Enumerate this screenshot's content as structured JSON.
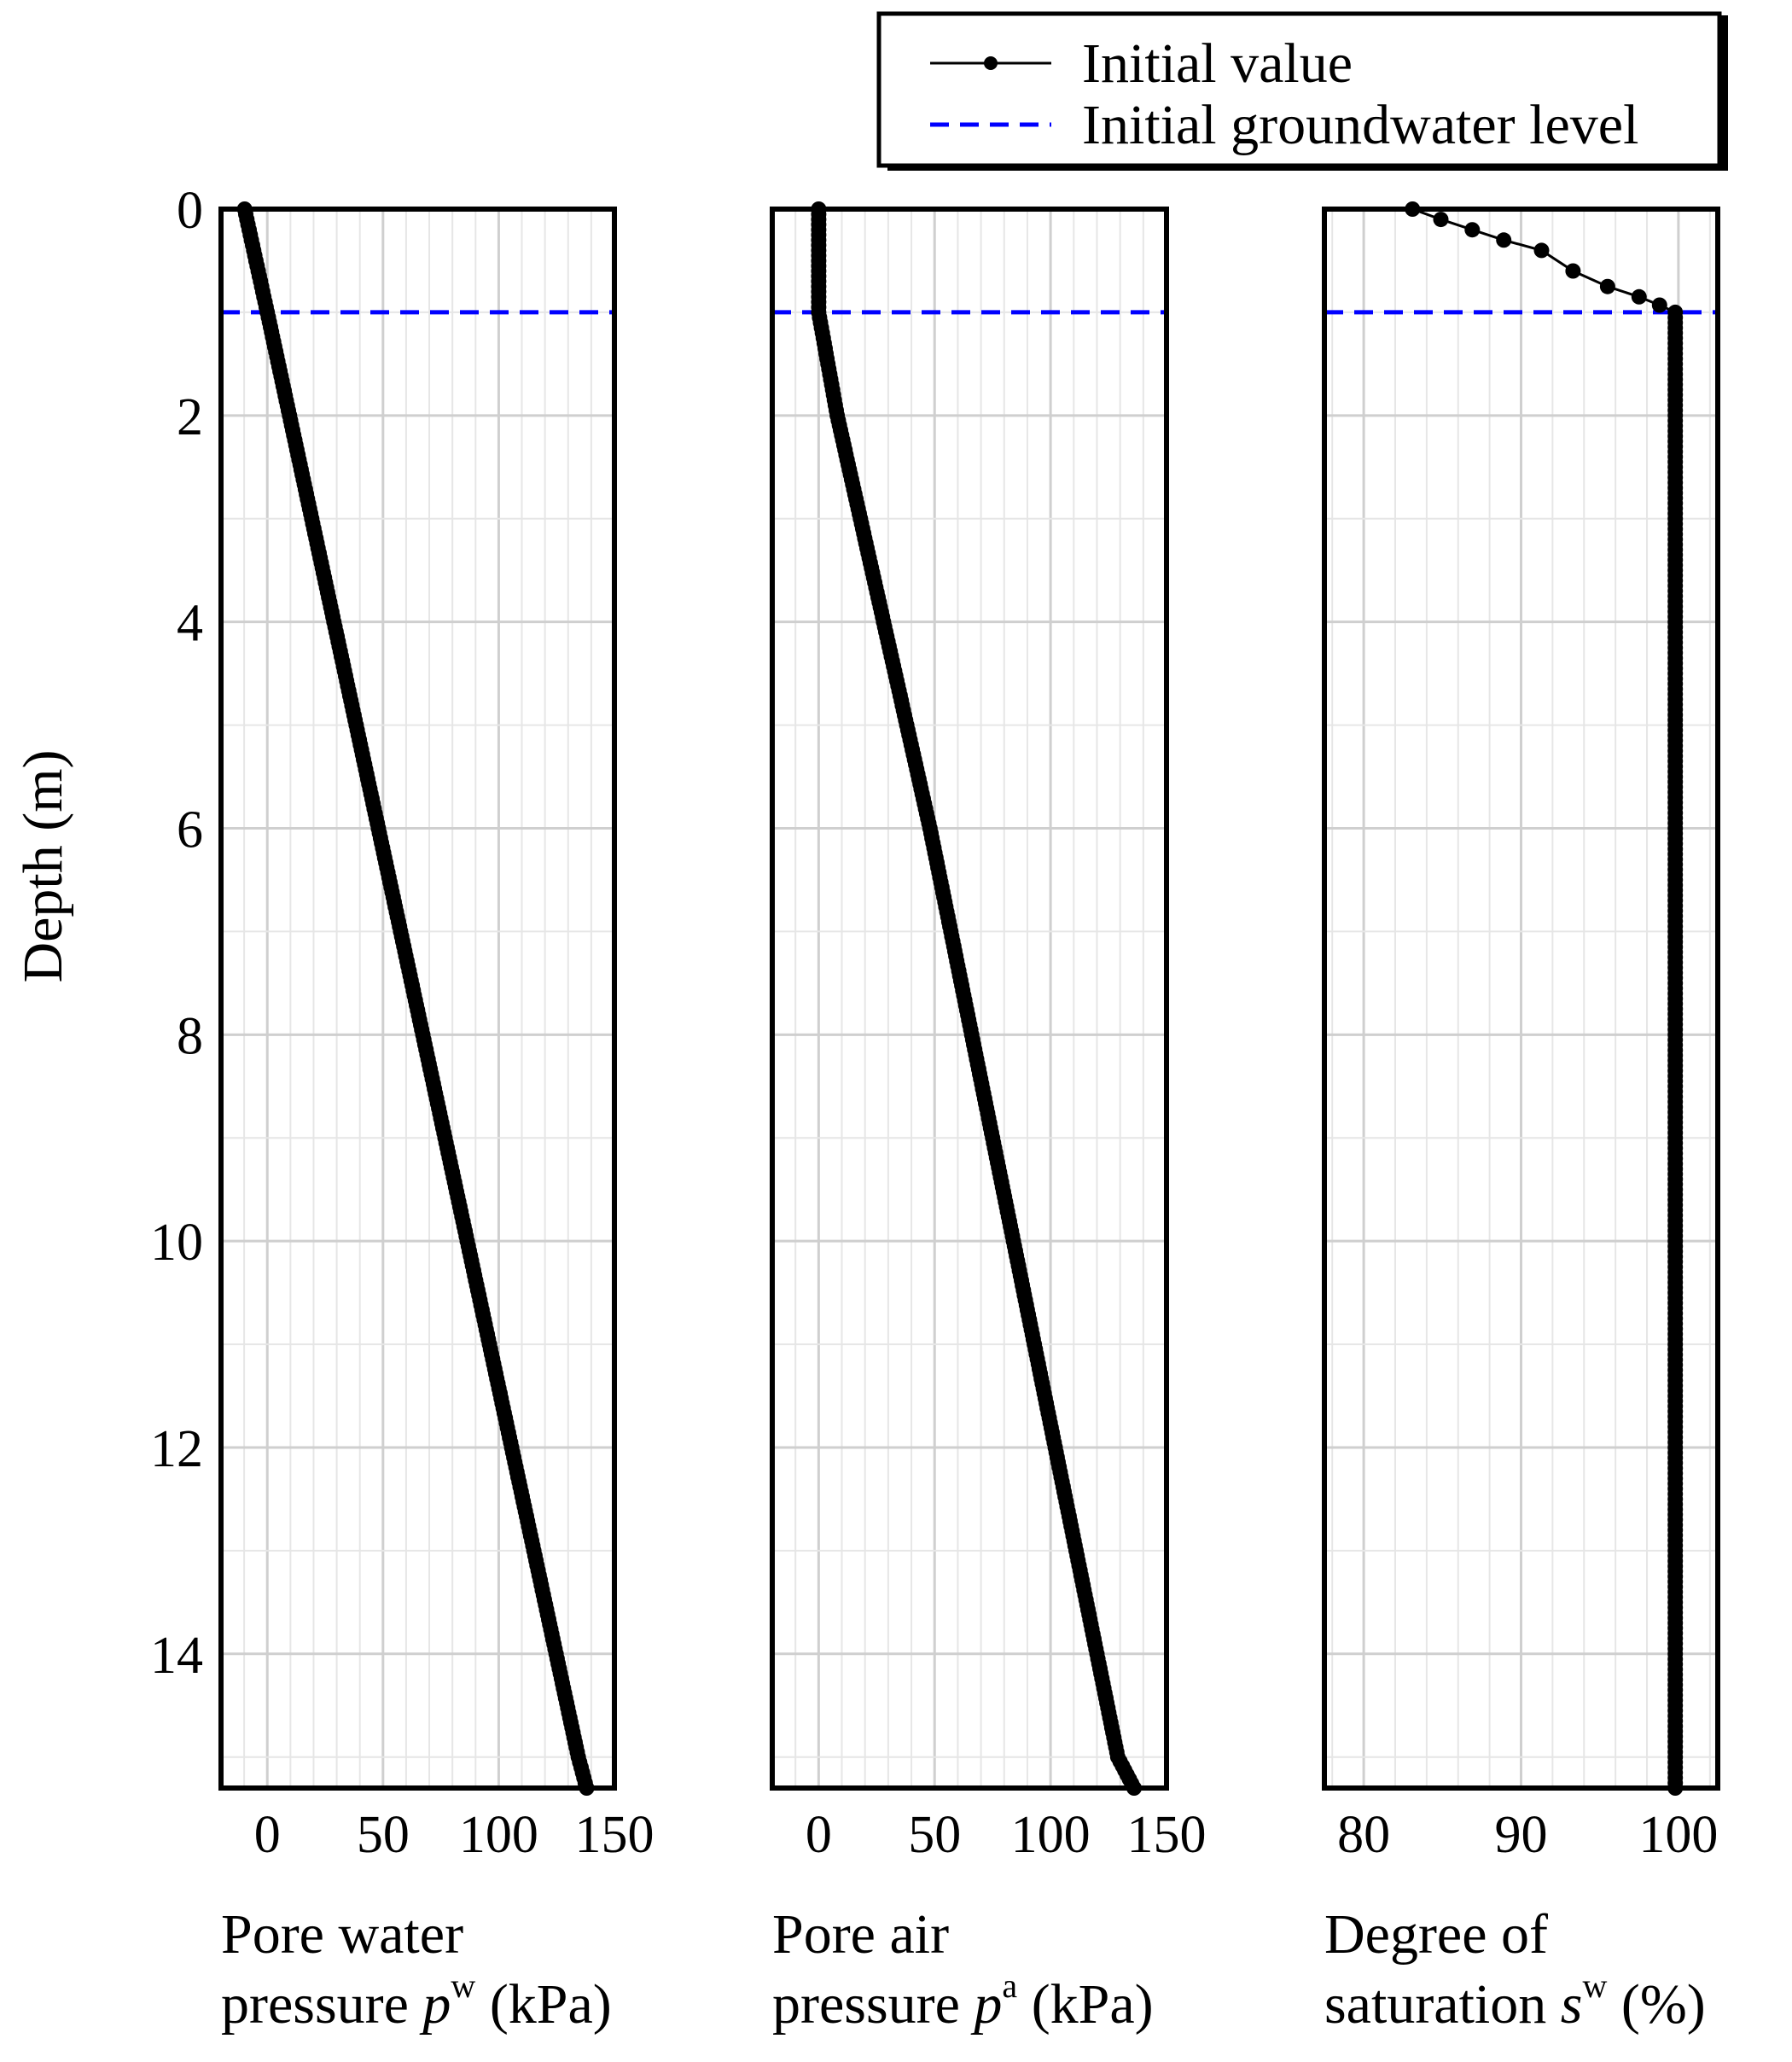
{
  "legend": {
    "items": [
      {
        "label": "Initial value",
        "style": "line-marker",
        "color": "#000000"
      },
      {
        "label": "Initial groundwater level",
        "style": "dashed",
        "color": "#0000ff"
      }
    ],
    "placement": "top-right"
  },
  "y_axis_label": "Depth (m)",
  "chart_data": [
    {
      "type": "line",
      "series": [
        {
          "name": "Initial value",
          "marker": "circle",
          "color": "#000000"
        }
      ],
      "xlabel_lines": [
        "Pore water",
        "pressure "
      ],
      "xlabel_symbol": "p",
      "xlabel_sup": "w",
      "xlabel_unit": " (kPa)",
      "xlim": [
        -20,
        150
      ],
      "xticks": [
        0,
        50,
        100,
        150
      ],
      "ylim": [
        0,
        15.3
      ],
      "yticks": [
        0,
        2,
        4,
        6,
        8,
        10,
        12,
        14
      ],
      "y_inverted": true,
      "grid": true,
      "groundwater_depth": 1.0,
      "x": [
        -9.8,
        -4.9,
        0,
        9.6,
        19.2,
        28.8,
        38.4,
        48,
        57.6,
        67.2,
        76.8,
        86.4,
        96,
        105.6,
        115.2,
        124.8,
        134.4,
        138
      ],
      "y": [
        0,
        0.5,
        1,
        2,
        3,
        4,
        5,
        6,
        7,
        8,
        9,
        10,
        11,
        12,
        13,
        14,
        15,
        15.3
      ]
    },
    {
      "type": "line",
      "series": [
        {
          "name": "Initial value",
          "marker": "circle",
          "color": "#000000"
        }
      ],
      "xlabel_lines": [
        "Pore air",
        "pressure "
      ],
      "xlabel_symbol": "p",
      "xlabel_sup": "a",
      "xlabel_unit": " (kPa)",
      "xlim": [
        -20,
        150
      ],
      "xticks": [
        0,
        50,
        100,
        150
      ],
      "ylim": [
        0,
        15.3
      ],
      "yticks": [
        0,
        2,
        4,
        6,
        8,
        10,
        12,
        14
      ],
      "y_inverted": true,
      "grid": true,
      "groundwater_depth": 1.0,
      "x": [
        0,
        0,
        0,
        8,
        18,
        28,
        38,
        48,
        57,
        66,
        75,
        84,
        93,
        102,
        111,
        120,
        129,
        136
      ],
      "y": [
        0,
        0.5,
        1,
        2,
        3,
        4,
        5,
        6,
        7,
        8,
        9,
        10,
        11,
        12,
        13,
        14,
        15,
        15.3
      ]
    },
    {
      "type": "line",
      "series": [
        {
          "name": "Initial value",
          "marker": "circle",
          "color": "#000000"
        }
      ],
      "xlabel_lines": [
        "Degree of",
        "saturation "
      ],
      "xlabel_symbol": "s",
      "xlabel_sup": "w",
      "xlabel_unit": " (%)",
      "xlim": [
        77.5,
        102.5
      ],
      "xticks": [
        80,
        90,
        100
      ],
      "ylim": [
        0,
        15.3
      ],
      "yticks": [
        0,
        2,
        4,
        6,
        8,
        10,
        12,
        14
      ],
      "y_inverted": true,
      "grid": true,
      "groundwater_depth": 1.0,
      "x": [
        83.1,
        84.9,
        86.9,
        88.9,
        91.3,
        93.3,
        95.5,
        97.5,
        98.8,
        99.8,
        99.8,
        99.8,
        99.8,
        99.8,
        99.8,
        99.8,
        99.8,
        99.8,
        99.8,
        99.8,
        99.8,
        99.8,
        99.8,
        99.8,
        99.8,
        99.8
      ],
      "y": [
        0,
        0.1,
        0.2,
        0.3,
        0.4,
        0.6,
        0.75,
        0.85,
        0.93,
        1,
        2,
        3,
        4,
        5,
        6,
        7,
        8,
        9,
        10,
        11,
        12,
        13,
        14,
        14.5,
        15,
        15.3
      ]
    }
  ]
}
